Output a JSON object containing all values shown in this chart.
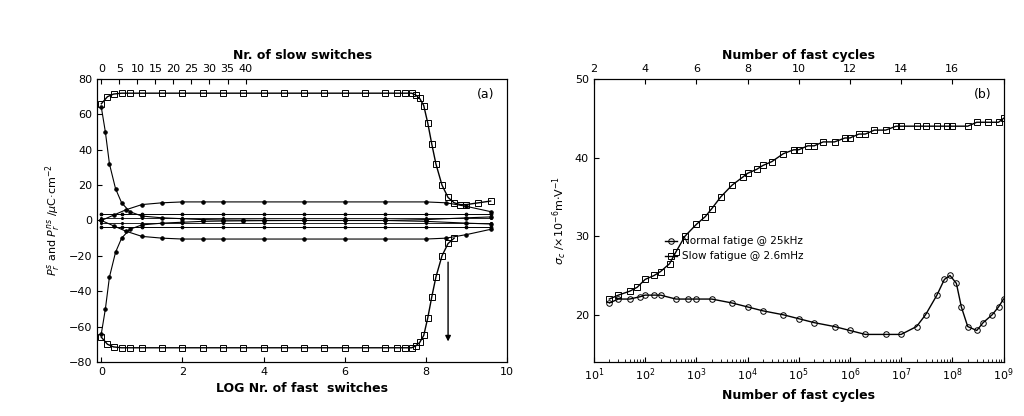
{
  "panel_a": {
    "title_top": "Nr. of slow switches",
    "xlabel": "LOG Nr. of fast  switches",
    "ylabel": "$P_r^s$ and $P_r^{ns}$ /$\\mu$C·cm$^{-2}$",
    "top_xtick_labels": [
      "0",
      "5",
      "10",
      "15",
      "20",
      "25",
      "30",
      "35",
      "40"
    ],
    "top_xtick_pos": [
      0.0,
      0.444,
      0.889,
      1.333,
      1.778,
      2.222,
      2.667,
      3.111,
      3.556
    ],
    "bottom_xticks": [
      0,
      2,
      4,
      6,
      8,
      10
    ],
    "yticks": [
      -80,
      -60,
      -40,
      -20,
      0,
      20,
      40,
      60,
      80
    ],
    "xlim": [
      -0.1,
      10.0
    ],
    "ylim": [
      -80,
      80
    ],
    "label": "(a)",
    "series": [
      {
        "name": "Ps_pos_square",
        "x": [
          0.0,
          0.15,
          0.3,
          0.5,
          0.7,
          1.0,
          1.5,
          2.0,
          2.5,
          3.0,
          3.5,
          4.0,
          4.5,
          5.0,
          5.5,
          6.0,
          6.5,
          7.0,
          7.3,
          7.5,
          7.65,
          7.75,
          7.85,
          7.95,
          8.05,
          8.15,
          8.25,
          8.4,
          8.55,
          8.7,
          8.85,
          9.0,
          9.3,
          9.6
        ],
        "y": [
          66,
          70,
          71.5,
          72,
          72,
          72,
          72,
          72,
          72,
          72,
          72,
          72,
          72,
          72,
          72,
          72,
          72,
          72,
          72,
          72,
          72,
          71,
          69,
          65,
          55,
          43,
          32,
          20,
          13,
          10,
          9,
          9,
          10,
          11
        ],
        "marker": "s",
        "markersize": 4,
        "fillstyle": "none",
        "linewidth": 1.0,
        "color": "black"
      },
      {
        "name": "Ps_neg_square",
        "x": [
          0.0,
          0.15,
          0.3,
          0.5,
          0.7,
          1.0,
          1.5,
          2.0,
          2.5,
          3.0,
          3.5,
          4.0,
          4.5,
          5.0,
          5.5,
          6.0,
          6.5,
          7.0,
          7.3,
          7.5,
          7.65,
          7.75,
          7.85,
          7.95,
          8.05,
          8.15,
          8.25,
          8.4,
          8.55,
          8.7
        ],
        "y": [
          -66,
          -70,
          -71.5,
          -72,
          -72,
          -72,
          -72,
          -72,
          -72,
          -72,
          -72,
          -72,
          -72,
          -72,
          -72,
          -72,
          -72,
          -72,
          -72,
          -72,
          -72,
          -71,
          -69,
          -65,
          -55,
          -43,
          -32,
          -20,
          -13,
          -10
        ],
        "marker": "s",
        "markersize": 4,
        "fillstyle": "none",
        "linewidth": 1.0,
        "color": "black"
      },
      {
        "name": "Pr_pos_solid",
        "x": [
          0.0,
          0.1,
          0.2,
          0.35,
          0.5,
          0.7,
          1.0,
          1.5,
          2.0,
          2.5,
          3.0,
          3.5,
          4.0,
          5.0,
          6.0,
          7.0,
          8.0,
          9.0,
          9.6
        ],
        "y": [
          64,
          50,
          32,
          18,
          10,
          5,
          2.5,
          1.5,
          1,
          0.5,
          0.3,
          0.2,
          0.1,
          0,
          0,
          0,
          0.5,
          1.5,
          2
        ],
        "marker": "o",
        "markersize": 2.5,
        "fillstyle": "full",
        "linewidth": 0.8,
        "color": "black"
      },
      {
        "name": "Pr_neg_solid",
        "x": [
          0.0,
          0.1,
          0.2,
          0.35,
          0.5,
          0.7,
          1.0,
          1.5,
          2.0,
          2.5,
          3.0,
          3.5,
          4.0,
          5.0,
          6.0,
          7.0,
          8.0,
          9.0,
          9.6
        ],
        "y": [
          -64,
          -50,
          -32,
          -18,
          -10,
          -5,
          -2.5,
          -1.5,
          -1,
          -0.5,
          -0.3,
          -0.2,
          -0.1,
          0,
          0,
          0,
          -0.5,
          -1.5,
          -2
        ],
        "marker": "o",
        "markersize": 2.5,
        "fillstyle": "full",
        "linewidth": 0.8,
        "color": "black"
      },
      {
        "name": "Pns_pos_solid",
        "x": [
          0.0,
          0.3,
          0.6,
          1.0,
          1.5,
          2.0,
          2.5,
          3.0,
          4.0,
          5.0,
          6.0,
          7.0,
          8.0,
          8.5,
          9.0,
          9.6
        ],
        "y": [
          0,
          -3,
          -6,
          -9,
          -10,
          -10.5,
          -10.5,
          -10.5,
          -10.5,
          -10.5,
          -10.5,
          -10.5,
          -10.5,
          -10,
          -8,
          -5
        ],
        "marker": "o",
        "markersize": 2.5,
        "fillstyle": "full",
        "linewidth": 0.8,
        "color": "black"
      },
      {
        "name": "Pns_neg_solid",
        "x": [
          0.0,
          0.3,
          0.6,
          1.0,
          1.5,
          2.0,
          2.5,
          3.0,
          4.0,
          5.0,
          6.0,
          7.0,
          8.0,
          8.5,
          9.0,
          9.6
        ],
        "y": [
          0,
          3,
          6,
          9,
          10,
          10.5,
          10.5,
          10.5,
          10.5,
          10.5,
          10.5,
          10.5,
          10.5,
          10,
          8,
          5
        ],
        "marker": "o",
        "markersize": 2.5,
        "fillstyle": "full",
        "linewidth": 0.8,
        "color": "black"
      },
      {
        "name": "flat_pos_2",
        "x": [
          0.0,
          0.5,
          1.0,
          2.0,
          3.0,
          4.0,
          5.0,
          6.0,
          7.0,
          8.0,
          9.0,
          9.6
        ],
        "y": [
          3.5,
          3.5,
          3.5,
          3.5,
          3.5,
          3.5,
          3.5,
          3.5,
          3.5,
          3.5,
          3.5,
          3.5
        ],
        "marker": "o",
        "markersize": 2,
        "fillstyle": "full",
        "linewidth": 0.7,
        "color": "black"
      },
      {
        "name": "flat_neg_2",
        "x": [
          0.0,
          0.5,
          1.0,
          2.0,
          3.0,
          4.0,
          5.0,
          6.0,
          7.0,
          8.0,
          9.0,
          9.6
        ],
        "y": [
          -3.5,
          -3.5,
          -3.5,
          -3.5,
          -3.5,
          -3.5,
          -3.5,
          -3.5,
          -3.5,
          -3.5,
          -3.5,
          -3.5
        ],
        "marker": "o",
        "markersize": 2,
        "fillstyle": "full",
        "linewidth": 0.7,
        "color": "black"
      },
      {
        "name": "flat_pos_1",
        "x": [
          0.0,
          0.5,
          1.0,
          2.0,
          3.0,
          4.0,
          5.0,
          6.0,
          7.0,
          8.0,
          9.0,
          9.6
        ],
        "y": [
          1.5,
          1.5,
          1.5,
          1.5,
          1.5,
          1.5,
          1.5,
          1.5,
          1.5,
          1.5,
          1.5,
          1.5
        ],
        "marker": "o",
        "markersize": 1.5,
        "fillstyle": "full",
        "linewidth": 0.6,
        "color": "black"
      },
      {
        "name": "flat_neg_1",
        "x": [
          0.0,
          0.5,
          1.0,
          2.0,
          3.0,
          4.0,
          5.0,
          6.0,
          7.0,
          8.0,
          9.0,
          9.6
        ],
        "y": [
          -1.5,
          -1.5,
          -1.5,
          -1.5,
          -1.5,
          -1.5,
          -1.5,
          -1.5,
          -1.5,
          -1.5,
          -1.5,
          -1.5
        ],
        "marker": "o",
        "markersize": 1.5,
        "fillstyle": "full",
        "linewidth": 0.6,
        "color": "black"
      }
    ],
    "arrow": {
      "x": 8.55,
      "y_start": -22,
      "y_end": -70,
      "color": "black"
    }
  },
  "panel_b": {
    "title_top": "Number of fast cycles",
    "xlabel": "Number of fast cycles",
    "ylabel": "$\\sigma_c$ /$\\times$10$^{-6}$m$\\cdot$V$^{-1}$",
    "xlim_log": [
      10.0,
      1000000000.0
    ],
    "ylim": [
      14,
      50
    ],
    "yticks": [
      20,
      30,
      40,
      50
    ],
    "label": "(b)",
    "series_square": {
      "name": "Slow fatigue @ 2.6mHz",
      "x": [
        20.0,
        30.0,
        50.0,
        70.0,
        100.0,
        150.0,
        200.0,
        300.0,
        400.0,
        600.0,
        1000.0,
        1500.0,
        2000.0,
        3000.0,
        5000.0,
        8000.0,
        10000.0,
        15000.0,
        20000.0,
        30000.0,
        50000.0,
        80000.0,
        100000.0,
        150000.0,
        200000.0,
        300000.0,
        500000.0,
        800000.0,
        1000000.0,
        1500000.0,
        2000000.0,
        3000000.0,
        5000000.0,
        8000000.0,
        10000000.0,
        20000000.0,
        30000000.0,
        50000000.0,
        80000000.0,
        100000000.0,
        200000000.0,
        300000000.0,
        500000000.0,
        800000000.0,
        1000000000.0
      ],
      "y": [
        22.0,
        22.5,
        23.0,
        23.5,
        24.5,
        25.0,
        25.5,
        26.5,
        28.0,
        30.0,
        31.5,
        32.5,
        33.5,
        35.0,
        36.5,
        37.5,
        38.0,
        38.5,
        39.0,
        39.5,
        40.5,
        41.0,
        41.0,
        41.5,
        41.5,
        42.0,
        42.0,
        42.5,
        42.5,
        43.0,
        43.0,
        43.5,
        43.5,
        44.0,
        44.0,
        44.0,
        44.0,
        44.0,
        44.0,
        44.0,
        44.0,
        44.5,
        44.5,
        44.5,
        45.0
      ],
      "marker": "s",
      "markersize": 4,
      "fillstyle": "none",
      "linewidth": 1.0,
      "color": "black"
    },
    "series_circle": {
      "name": "Normal fatige @ 25kHz",
      "x": [
        20.0,
        30.0,
        50.0,
        80.0,
        100.0,
        150.0,
        200.0,
        400.0,
        700.0,
        1000.0,
        2000.0,
        5000.0,
        10000.0,
        20000.0,
        50000.0,
        100000.0,
        200000.0,
        500000.0,
        1000000.0,
        2000000.0,
        5000000.0,
        10000000.0,
        20000000.0,
        30000000.0,
        50000000.0,
        70000000.0,
        90000000.0,
        120000000.0,
        150000000.0,
        200000000.0,
        300000000.0,
        400000000.0,
        600000000.0,
        800000000.0,
        1000000000.0
      ],
      "y": [
        21.5,
        22.0,
        22.0,
        22.3,
        22.5,
        22.5,
        22.5,
        22.0,
        22.0,
        22.0,
        22.0,
        21.5,
        21.0,
        20.5,
        20.0,
        19.5,
        19.0,
        18.5,
        18.0,
        17.5,
        17.5,
        17.5,
        18.5,
        20.0,
        22.5,
        24.5,
        25.0,
        24.0,
        21.0,
        18.5,
        18.0,
        19.0,
        20.0,
        21.0,
        22.0
      ],
      "marker": "o",
      "markersize": 4,
      "fillstyle": "none",
      "linewidth": 1.0,
      "color": "black"
    }
  }
}
